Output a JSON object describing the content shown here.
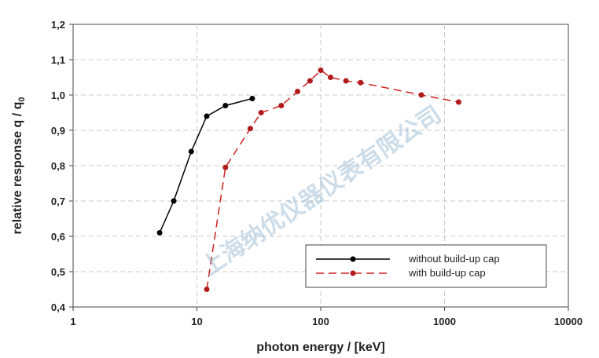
{
  "watermark": "上海纳优仪器仪表有限公司",
  "chart_data": {
    "type": "line",
    "xlabel": "photon energy / [keV]",
    "ylabel_main": "relative response q / q",
    "ylabel_sub": "0",
    "xscale": "log",
    "xlim": [
      1,
      10000
    ],
    "ylim": [
      0.4,
      1.2
    ],
    "xticks": [
      {
        "value": 1,
        "label": "1"
      },
      {
        "value": 10,
        "label": "10"
      },
      {
        "value": 100,
        "label": "100"
      },
      {
        "value": 1000,
        "label": "1000"
      },
      {
        "value": 10000,
        "label": "10000"
      }
    ],
    "yticks": [
      {
        "value": 0.4,
        "label": "0,4"
      },
      {
        "value": 0.5,
        "label": "0,5"
      },
      {
        "value": 0.6,
        "label": "0,6"
      },
      {
        "value": 0.7,
        "label": "0,7"
      },
      {
        "value": 0.8,
        "label": "0,8"
      },
      {
        "value": 0.9,
        "label": "0,9"
      },
      {
        "value": 1.0,
        "label": "1,0"
      },
      {
        "value": 1.1,
        "label": "1,1"
      },
      {
        "value": 1.2,
        "label": "1,2"
      }
    ],
    "grid": true,
    "legend_position": "bottom-right",
    "series": [
      {
        "name": "without build-up cap",
        "color": "#000000",
        "dashed": false,
        "points": [
          [
            5,
            0.61
          ],
          [
            6.5,
            0.7
          ],
          [
            9,
            0.84
          ],
          [
            12,
            0.94
          ],
          [
            17,
            0.97
          ],
          [
            28,
            0.99
          ]
        ]
      },
      {
        "name": "with build-up cap",
        "color": "#cc2222",
        "dashed": true,
        "points": [
          [
            12,
            0.45
          ],
          [
            17,
            0.795
          ],
          [
            27,
            0.905
          ],
          [
            33,
            0.95
          ],
          [
            48,
            0.97
          ],
          [
            65,
            1.01
          ],
          [
            82,
            1.04
          ],
          [
            100,
            1.07
          ],
          [
            120,
            1.05
          ],
          [
            160,
            1.04
          ],
          [
            210,
            1.035
          ],
          [
            650,
            1.0
          ],
          [
            1300,
            0.98
          ]
        ]
      }
    ]
  }
}
